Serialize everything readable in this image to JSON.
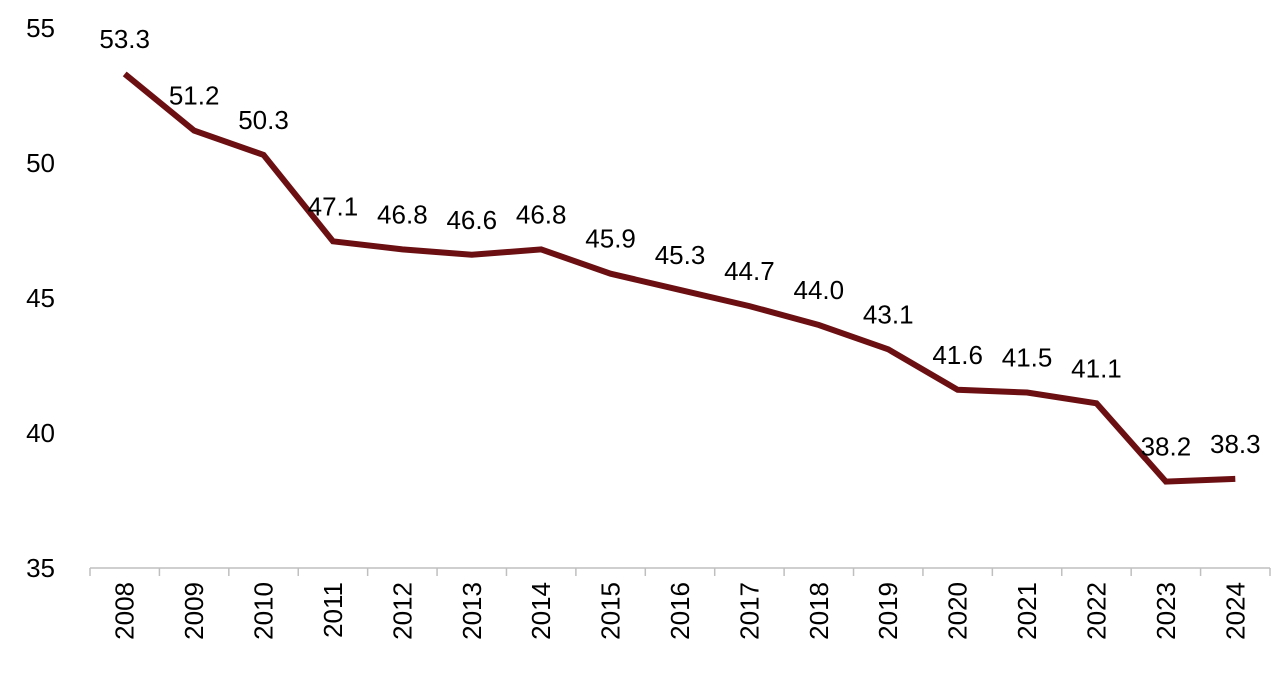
{
  "chart_data": {
    "type": "line",
    "title": "",
    "xlabel": "",
    "ylabel": "",
    "categories": [
      "2008",
      "2009",
      "2010",
      "2011",
      "2012",
      "2013",
      "2014",
      "2015",
      "2016",
      "2017",
      "2018",
      "2019",
      "2020",
      "2021",
      "2022",
      "2023",
      "2024"
    ],
    "series": [
      {
        "values": [
          53.3,
          51.2,
          50.3,
          47.1,
          46.8,
          46.6,
          46.8,
          45.9,
          45.3,
          44.7,
          44.0,
          43.1,
          41.6,
          41.5,
          41.1,
          38.2,
          38.3
        ],
        "color": "#6b0f12"
      }
    ],
    "data_labels": [
      "53.3",
      "51.2",
      "50.3",
      "47.1",
      "46.8",
      "46.6",
      "46.8",
      "45.9",
      "45.3",
      "44.7",
      "44.0",
      "43.1",
      "41.6",
      "41.5",
      "41.1",
      "38.2",
      "38.3"
    ],
    "ylim": [
      35,
      55
    ],
    "yticks": [
      "35",
      "40",
      "45",
      "50",
      "55"
    ],
    "grid": false,
    "legend": "none",
    "x_tick_rotation": "vertical",
    "axis_color": "#bfbfbf"
  }
}
